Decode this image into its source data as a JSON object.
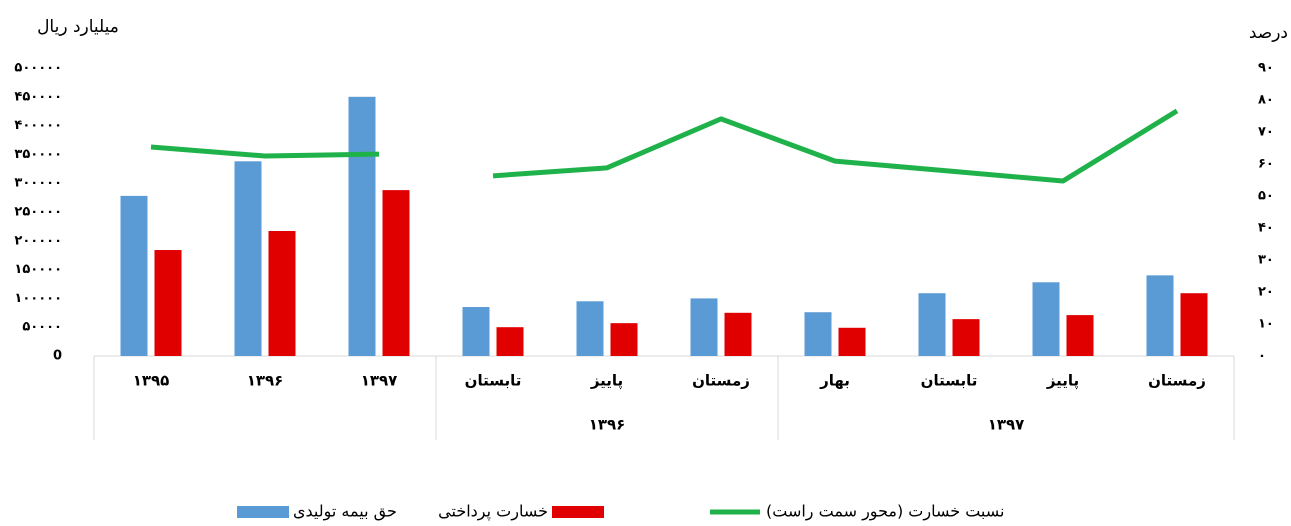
{
  "chart_data": {
    "type": "bar_line",
    "y_label": "میلیارد ریال",
    "y2_label": "درصد",
    "categories": [
      "۱۳۹۵",
      "۱۳۹۶",
      "۱۳۹۷",
      "تابستان",
      "پاییز",
      "زمستان",
      "بهار",
      "تابستان",
      "پاییز",
      "زمستان"
    ],
    "category_groups": [
      {
        "label": "۱۳۹۶",
        "from": 3,
        "to": 5
      },
      {
        "label": "۱۳۹۷",
        "from": 6,
        "to": 9
      }
    ],
    "series": [
      {
        "name": "حق بیمه تولیدی",
        "color": "#5b9bd5",
        "kind": "bar",
        "values": [
          278000,
          338000,
          450000,
          85000,
          95000,
          100000,
          76000,
          109000,
          128000,
          140000
        ]
      },
      {
        "name": "خسارت پرداختی",
        "color": "#e00000",
        "kind": "bar",
        "values": [
          184000,
          217000,
          288000,
          50000,
          57000,
          75000,
          49000,
          64000,
          71000,
          109000
        ]
      },
      {
        "name": "نسبت خسارت (محور سمت راست)",
        "color": "#1fb24a",
        "kind": "line",
        "axis": "y2",
        "values": [
          65.3,
          62.5,
          63.1,
          56.3,
          58.8,
          74.1,
          60.9,
          57.8,
          54.7,
          76.6
        ]
      }
    ],
    "ylim": [
      0,
      500000
    ],
    "yticks": [
      0,
      {
        "value": 50000,
        "label": "۵۰۰۰۰"
      },
      {
        "value": 100000,
        "label": "۱۰۰۰۰۰"
      },
      {
        "value": 150000,
        "label": "۱۵۰۰۰۰"
      },
      {
        "value": 200000,
        "label": "۲۰۰۰۰۰"
      },
      {
        "value": 250000,
        "label": "۲۵۰۰۰۰"
      },
      {
        "value": 300000,
        "label": "۳۰۰۰۰۰"
      },
      {
        "value": 350000,
        "label": "۳۵۰۰۰۰"
      },
      {
        "value": 400000,
        "label": "۴۰۰۰۰۰"
      },
      {
        "value": 450000,
        "label": "۴۵۰۰۰۰"
      },
      {
        "value": 500000,
        "label": "۵۰۰۰۰۰"
      }
    ],
    "y2lim": [
      0,
      90
    ],
    "y2ticks": [
      {
        "value": 0,
        "label": "۰"
      },
      {
        "value": 10,
        "label": "۱۰"
      },
      {
        "value": 20,
        "label": "۲۰"
      },
      {
        "value": 30,
        "label": "۳۰"
      },
      {
        "value": 40,
        "label": "۴۰"
      },
      {
        "value": 50,
        "label": "۵۰"
      },
      {
        "value": 60,
        "label": "۶۰"
      },
      {
        "value": 70,
        "label": "۷۰"
      },
      {
        "value": 80,
        "label": "۸۰"
      },
      {
        "value": 90,
        "label": "۹۰"
      }
    ],
    "grid": false,
    "legend": "bottom"
  }
}
